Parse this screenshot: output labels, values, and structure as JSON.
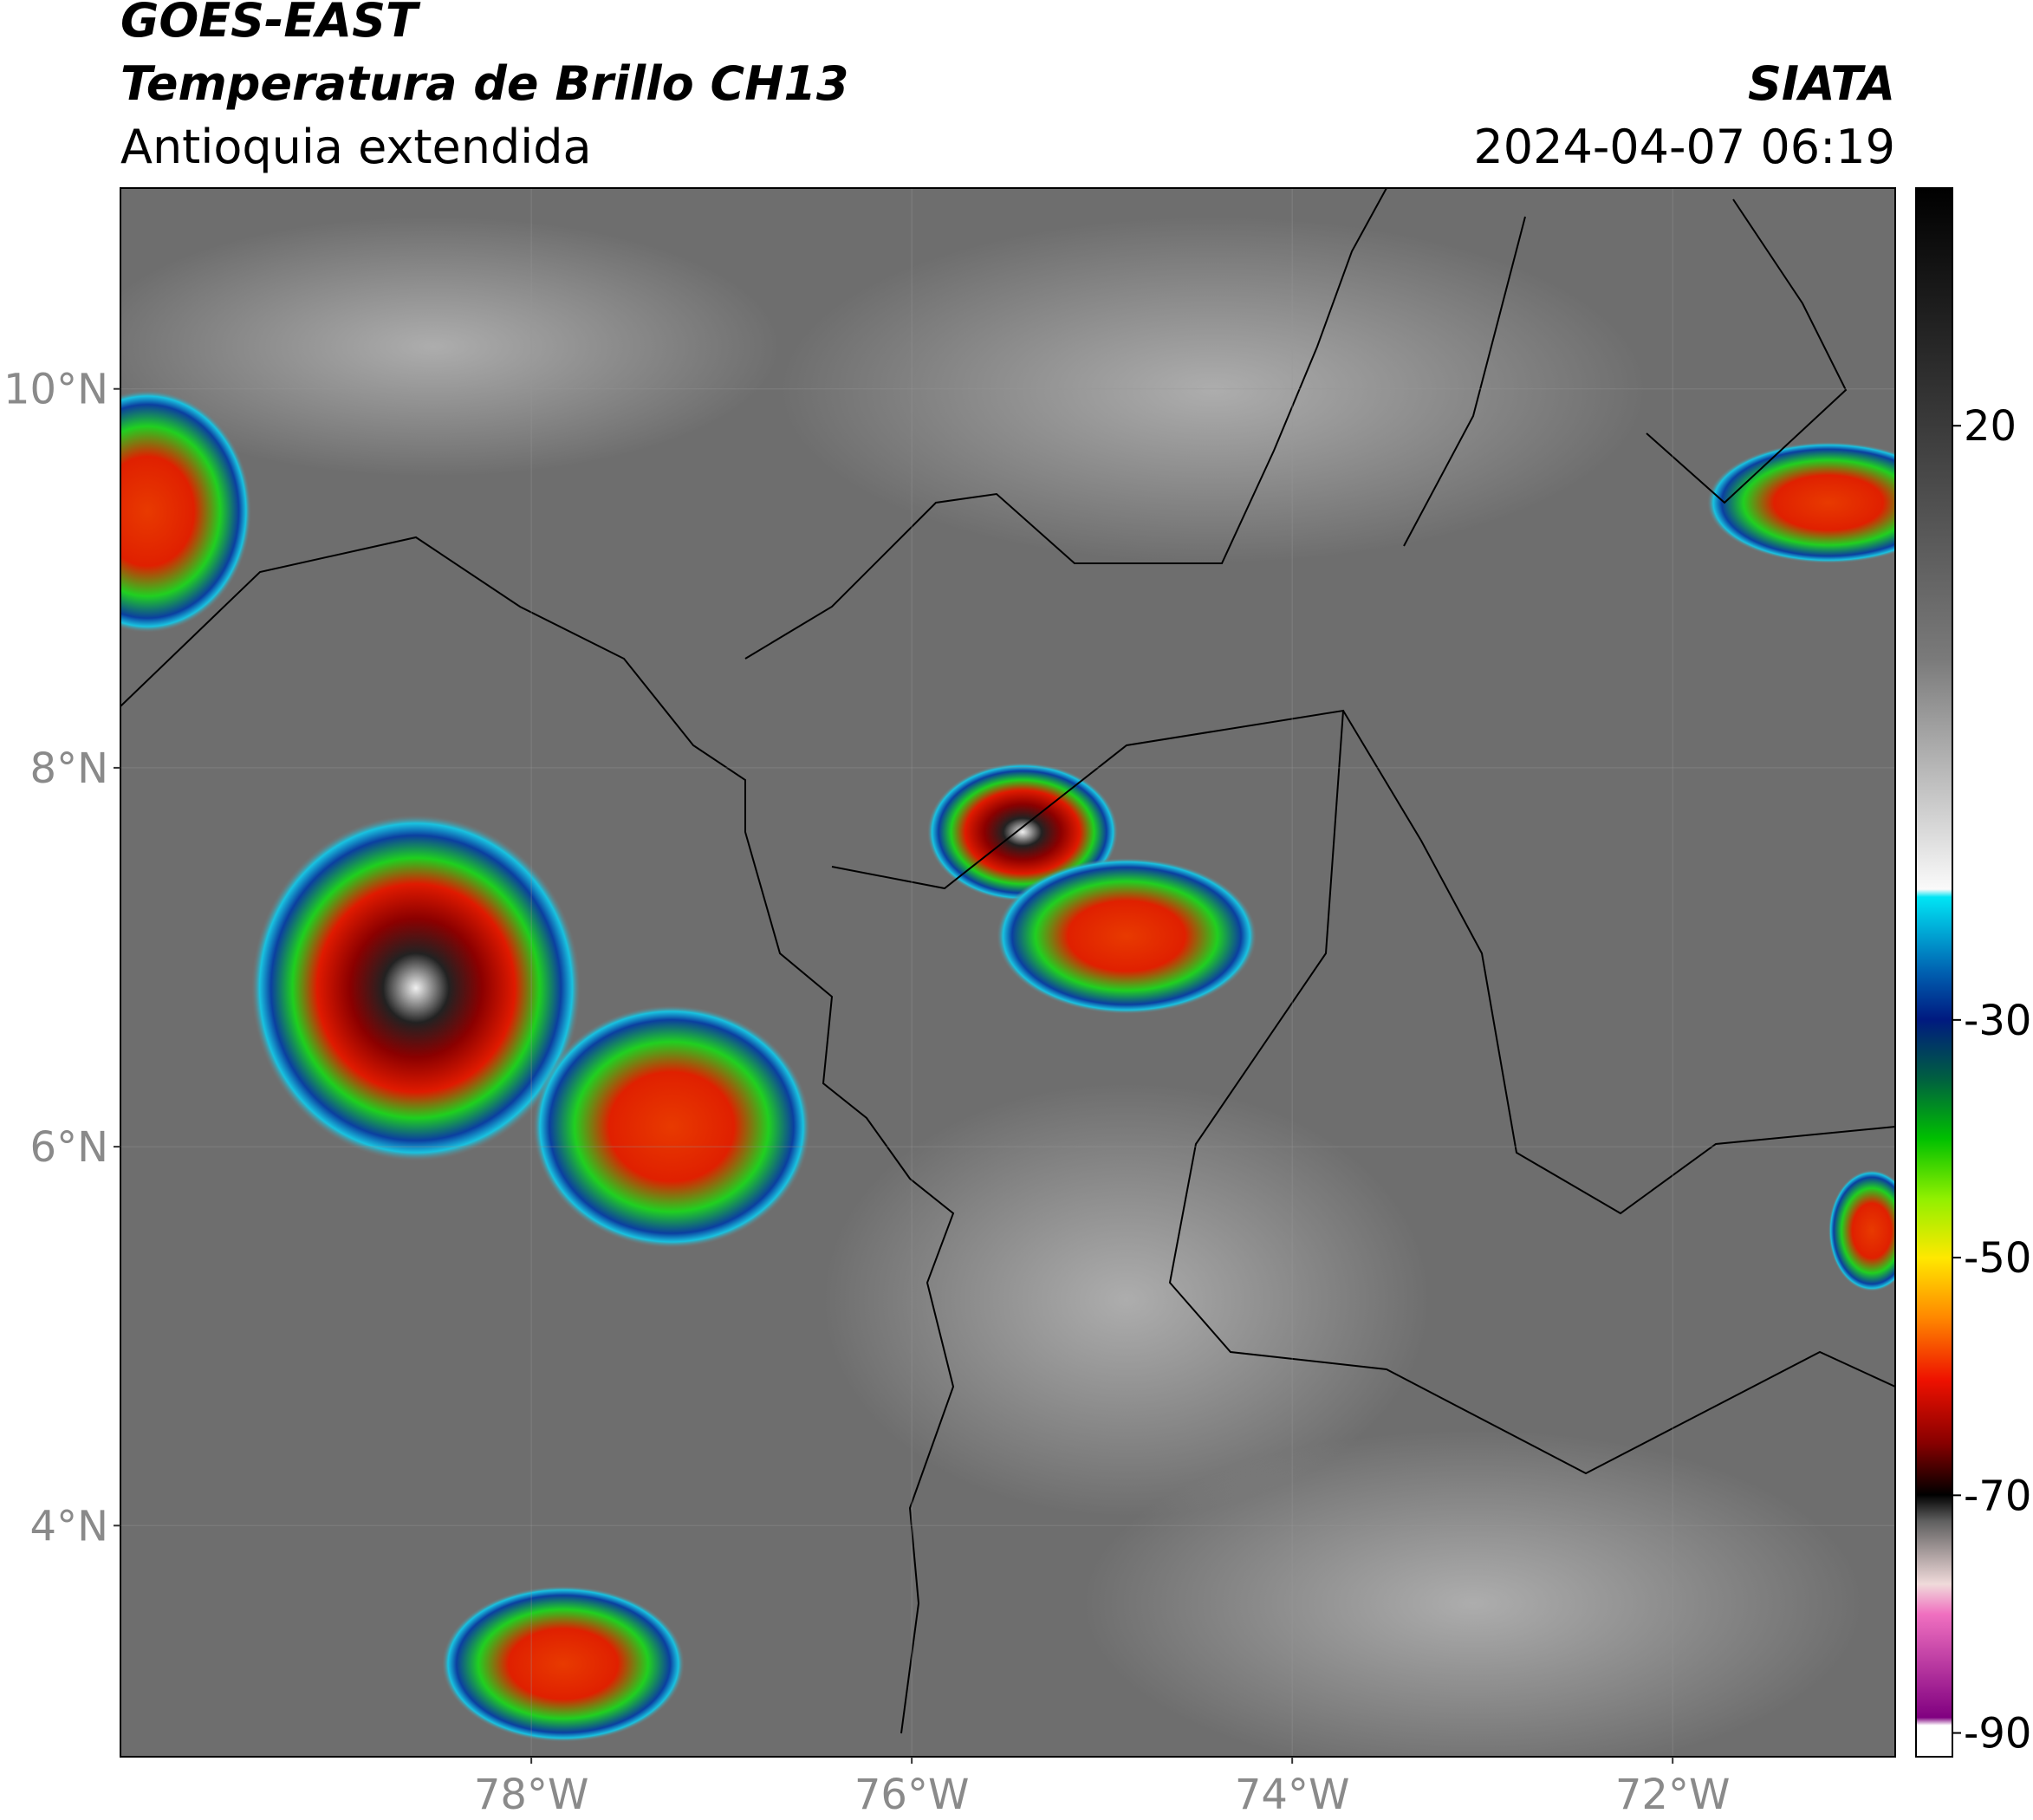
{
  "header": {
    "title": "GOES-EAST",
    "subtitle": "Temperatura de Brillo CH13",
    "region": "Antioquia extendida",
    "source": "SIATA",
    "datetime": "2024-04-07 06:19"
  },
  "map": {
    "xlim": [
      -80.16,
      -70.83
    ],
    "ylim": [
      2.78,
      11.06
    ],
    "xticks": [
      {
        "value": -78,
        "label": "78°W"
      },
      {
        "value": -76,
        "label": "76°W"
      },
      {
        "value": -74,
        "label": "74°W"
      },
      {
        "value": -72,
        "label": "72°W"
      }
    ],
    "yticks": [
      {
        "value": 10,
        "label": "10°N"
      },
      {
        "value": 8,
        "label": "8°N"
      },
      {
        "value": 6,
        "label": "6°N"
      },
      {
        "value": 4,
        "label": "4°N"
      }
    ]
  },
  "colorbar": {
    "lim": [
      -92,
      40
    ],
    "ticks": [
      20,
      -30,
      -50,
      -70,
      -90
    ]
  }
}
